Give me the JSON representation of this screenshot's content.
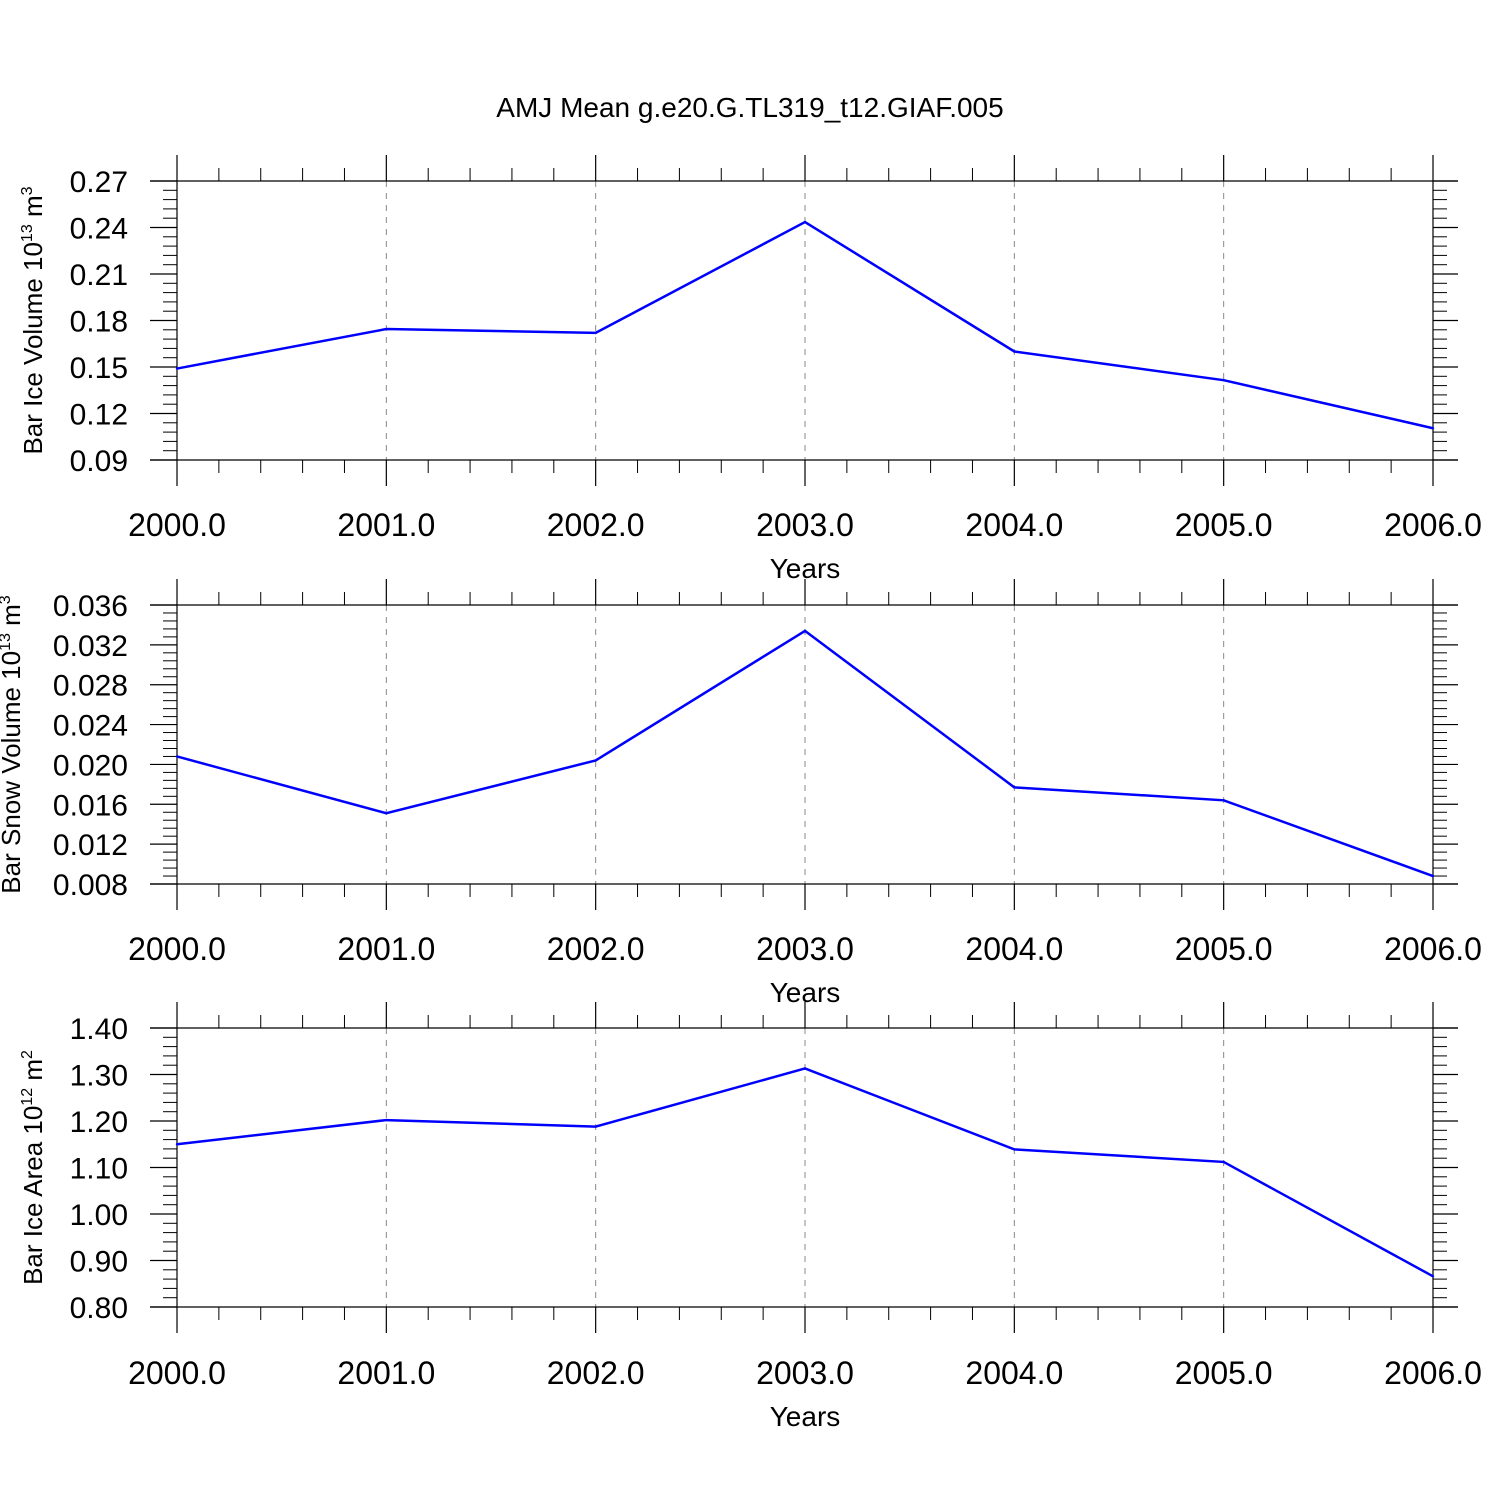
{
  "title": "AMJ Mean g.e20.G.TL319_t12.GIAF.005",
  "chart_data": [
    {
      "type": "line",
      "xlabel": "Years",
      "ylabel": {
        "text": "Bar Ice Volume 10",
        "sup": "13",
        "unit": " m",
        "unit_sup": "3"
      },
      "x": [
        2000,
        2001,
        2002,
        2003,
        2004,
        2005,
        2006
      ],
      "xlim": [
        2000,
        2006
      ],
      "x_tick_labels": [
        "2000.0",
        "2001.0",
        "2002.0",
        "2003.0",
        "2004.0",
        "2005.0",
        "2006.0"
      ],
      "ylim": [
        0.09,
        0.27
      ],
      "y_ticks": [
        0.09,
        0.12,
        0.15,
        0.18,
        0.21,
        0.24,
        0.27
      ],
      "y_tick_labels": [
        "0.09",
        "0.12",
        "0.15",
        "0.18",
        "0.21",
        "0.24",
        "0.27"
      ],
      "series": [
        {
          "values": [
            0.149,
            0.1745,
            0.172,
            0.2435,
            0.16,
            0.1415,
            0.1105
          ],
          "color": "#0000ff"
        }
      ],
      "grid": "vertical dashed at major x ticks"
    },
    {
      "type": "line",
      "xlabel": "Years",
      "ylabel": {
        "text": "Bar Snow Volume 10",
        "sup": "13",
        "unit": " m",
        "unit_sup": "3"
      },
      "x": [
        2000,
        2001,
        2002,
        2003,
        2004,
        2005,
        2006
      ],
      "xlim": [
        2000,
        2006
      ],
      "x_tick_labels": [
        "2000.0",
        "2001.0",
        "2002.0",
        "2003.0",
        "2004.0",
        "2005.0",
        "2006.0"
      ],
      "ylim": [
        0.008,
        0.036
      ],
      "y_ticks": [
        0.008,
        0.012,
        0.016,
        0.02,
        0.024,
        0.028,
        0.032,
        0.036
      ],
      "y_tick_labels": [
        "0.008",
        "0.012",
        "0.016",
        "0.020",
        "0.024",
        "0.028",
        "0.032",
        "0.036"
      ],
      "series": [
        {
          "values": [
            0.0208,
            0.0151,
            0.0204,
            0.0334,
            0.0177,
            0.0164,
            0.0088
          ],
          "color": "#0000ff"
        }
      ],
      "grid": "vertical dashed at major x ticks"
    },
    {
      "type": "line",
      "xlabel": "Years",
      "ylabel": {
        "text": "Bar Ice Area 10",
        "sup": "12",
        "unit": " m",
        "unit_sup": "2"
      },
      "x": [
        2000,
        2001,
        2002,
        2003,
        2004,
        2005,
        2006
      ],
      "xlim": [
        2000,
        2006
      ],
      "x_tick_labels": [
        "2000.0",
        "2001.0",
        "2002.0",
        "2003.0",
        "2004.0",
        "2005.0",
        "2006.0"
      ],
      "ylim": [
        0.8,
        1.4
      ],
      "y_ticks": [
        0.8,
        0.9,
        1.0,
        1.1,
        1.2,
        1.3,
        1.4
      ],
      "y_tick_labels": [
        "0.80",
        "0.90",
        "1.00",
        "1.10",
        "1.20",
        "1.30",
        "1.40"
      ],
      "series": [
        {
          "values": [
            1.15,
            1.202,
            1.188,
            1.313,
            1.139,
            1.112,
            0.866
          ],
          "color": "#0000ff"
        }
      ],
      "grid": "vertical dashed at major x ticks"
    }
  ]
}
